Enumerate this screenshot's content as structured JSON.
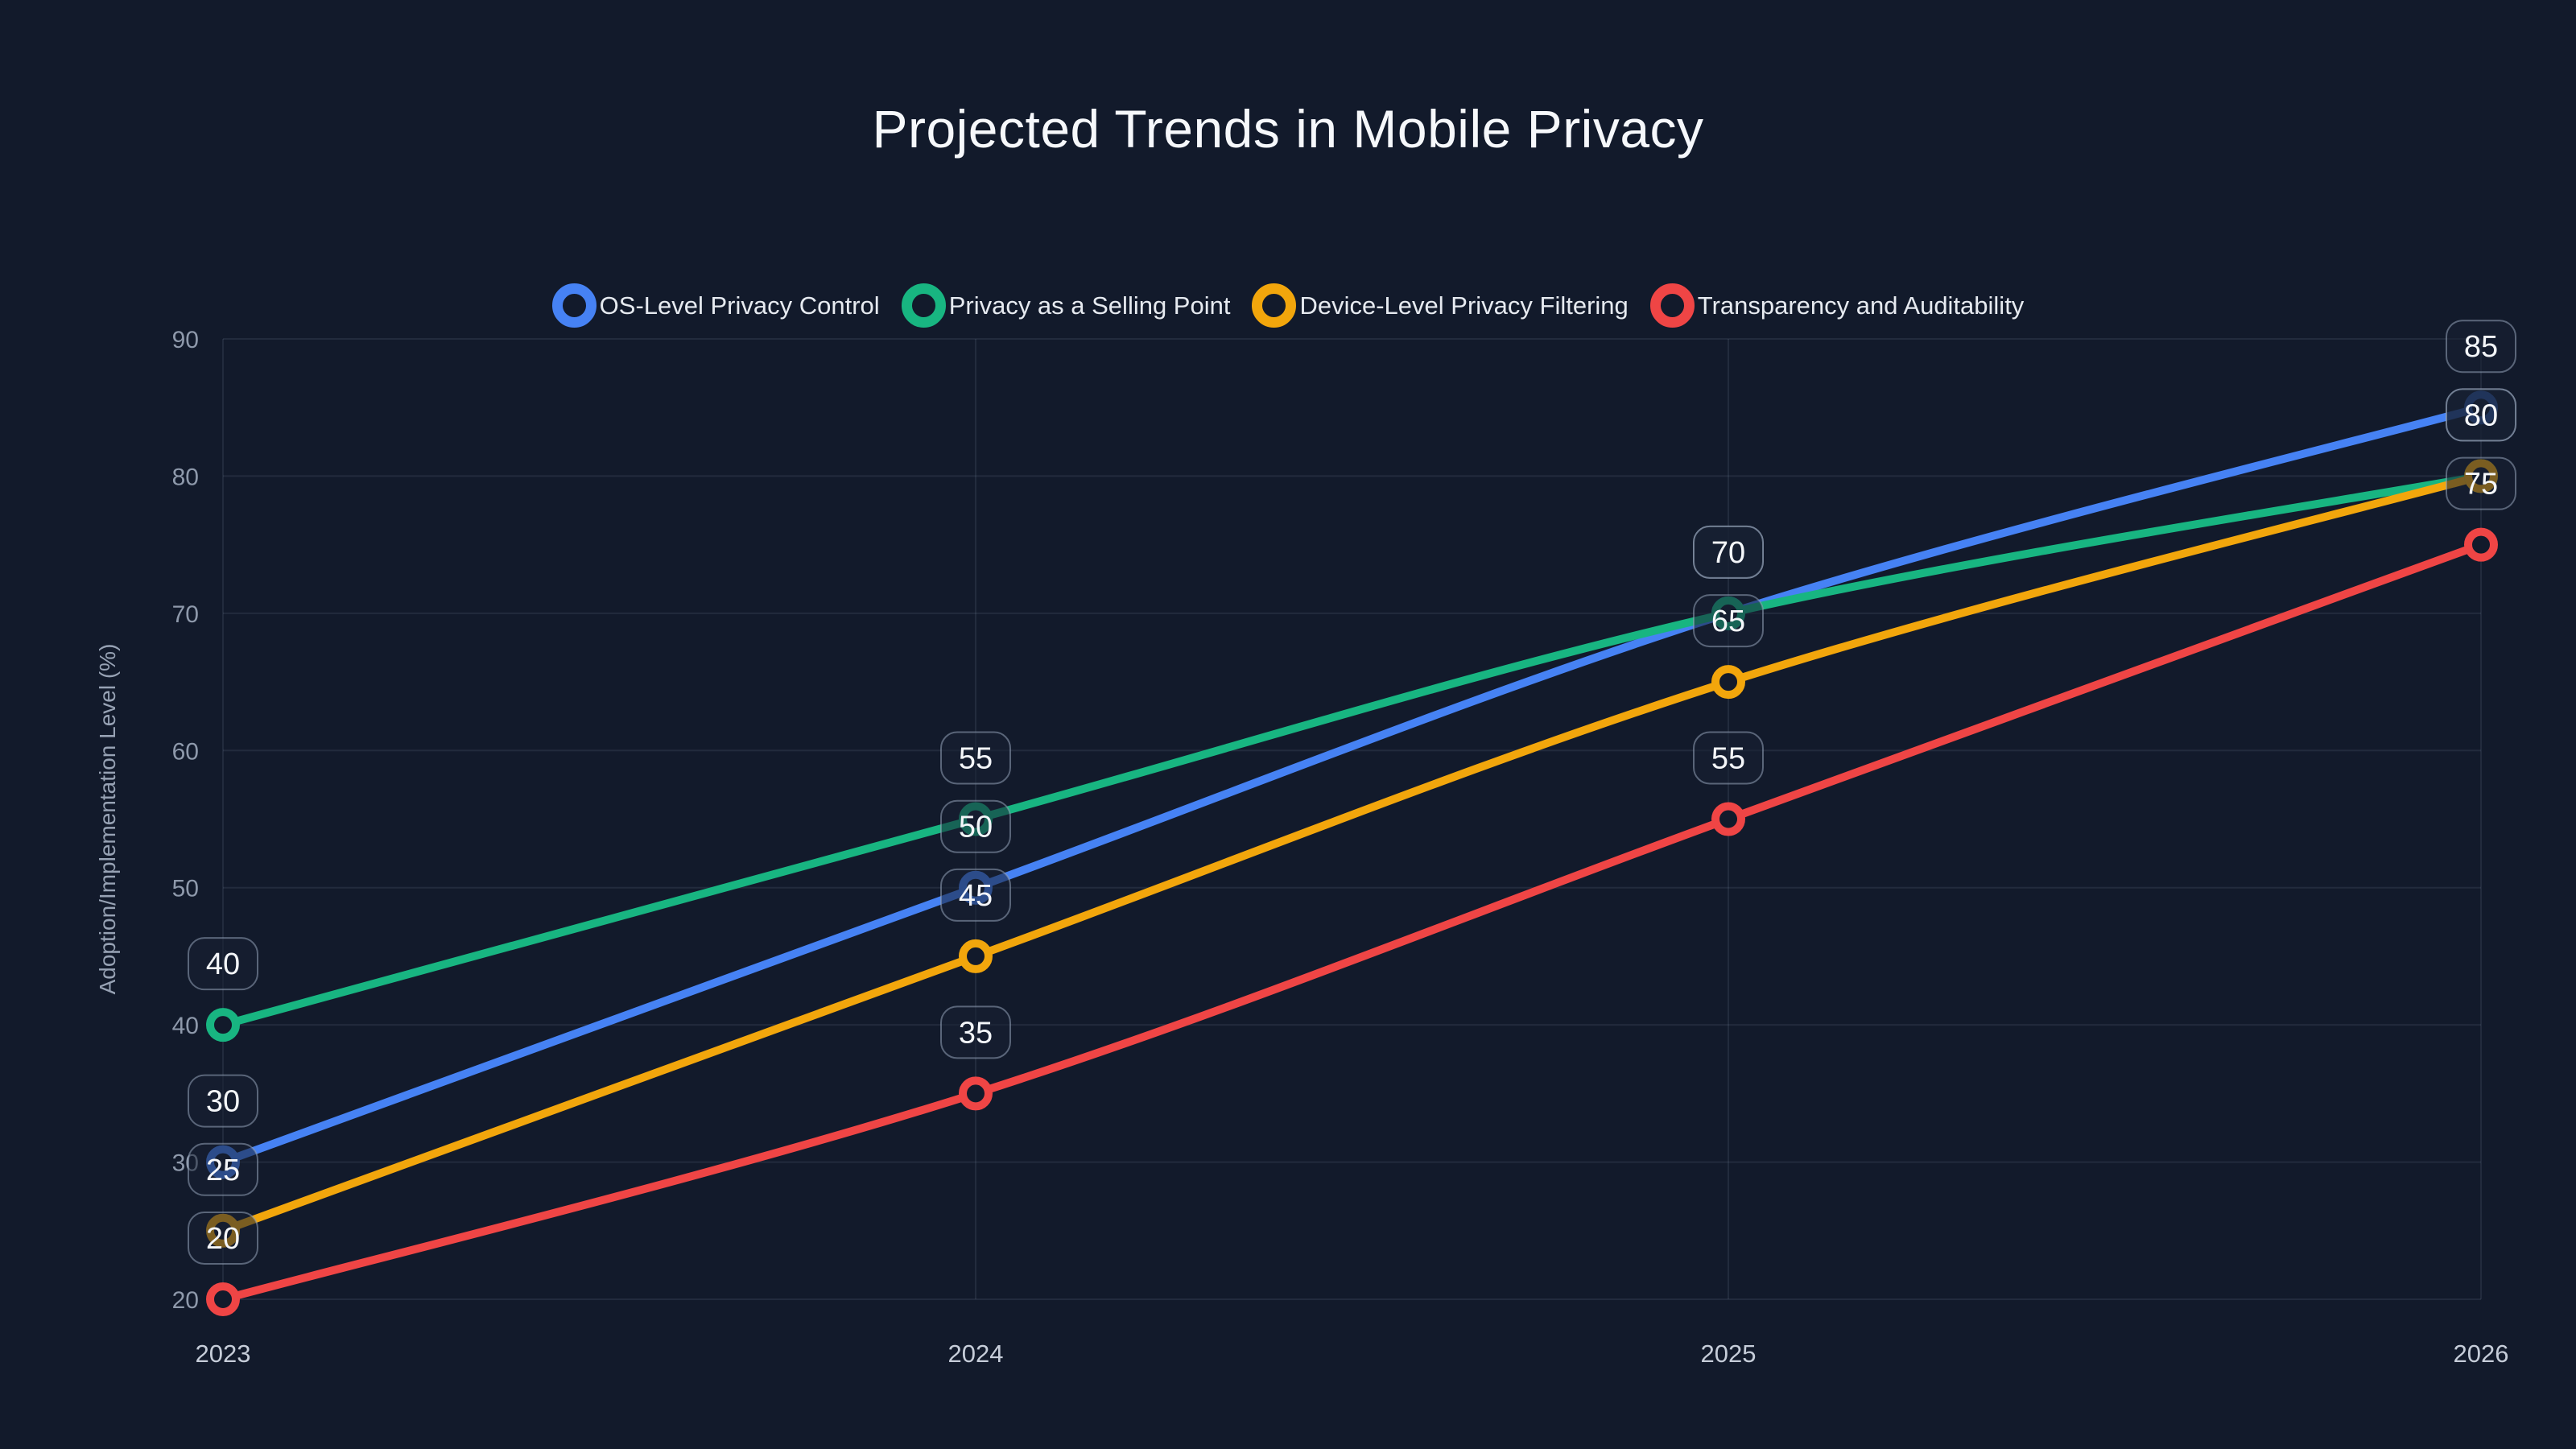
{
  "chart_data": {
    "type": "line",
    "title": "Projected Trends in Mobile Privacy",
    "xlabel": "",
    "ylabel": "Adoption/Implementation Level (%)",
    "categories": [
      "2023",
      "2024",
      "2025",
      "2026"
    ],
    "y_ticks": [
      20,
      30,
      40,
      50,
      60,
      70,
      80,
      90
    ],
    "ylim": [
      20,
      90
    ],
    "grid": true,
    "smooth": true,
    "legend_position": "top",
    "point_labels_visible": true,
    "series": [
      {
        "name": "OS-Level Privacy Control",
        "color": "#4682f4",
        "values": [
          30,
          50,
          70,
          85
        ]
      },
      {
        "name": "Privacy as a Selling Point",
        "color": "#18b581",
        "values": [
          40,
          55,
          70,
          80
        ]
      },
      {
        "name": "Device-Level Privacy Filtering",
        "color": "#f2a60c",
        "values": [
          25,
          45,
          65,
          80
        ]
      },
      {
        "name": "Transparency and Auditability",
        "color": "#ef4545",
        "values": [
          20,
          35,
          55,
          75
        ]
      }
    ]
  },
  "theme": {
    "background": "#121a2b",
    "gridline": "rgba(148,163,184,0.13)",
    "y_tick_text": "#8e99ab",
    "x_tick_text": "#c6cdd9",
    "axis_title_text": "#97a2b4",
    "title_text": "#f6f8fb",
    "legend_text": "#e6eaf0",
    "badge_fill": "rgba(23,32,51,0.55)",
    "badge_border": "rgba(148,163,184,0.55)",
    "badge_text": "#f4f6f9"
  }
}
